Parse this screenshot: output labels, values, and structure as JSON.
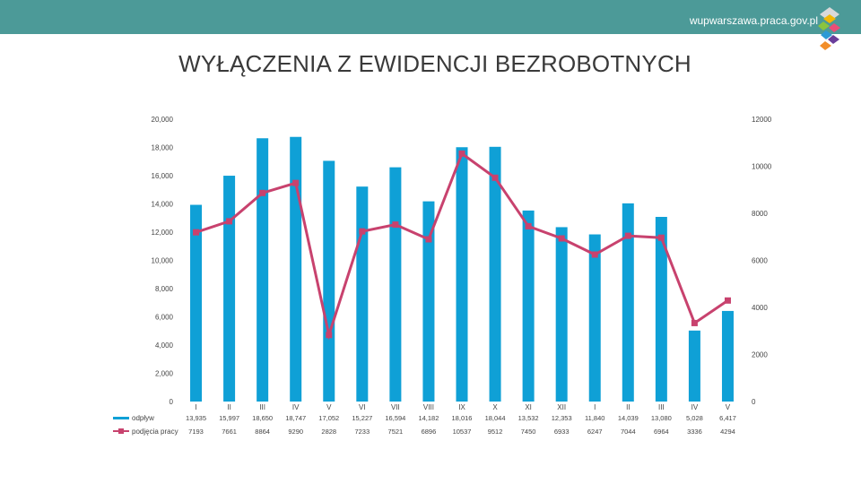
{
  "header": {
    "site": "wupwarszawa.praca.gov.pl"
  },
  "colors": {
    "topbar": "#4c9a98",
    "bars": "#0fa0d6",
    "line": "#c8426e"
  },
  "chart_data": {
    "type": "bar",
    "title": "WYŁĄCZENIA Z EWIDENCJI BEZROBOTNYCH",
    "categories": [
      "I",
      "II",
      "III",
      "IV",
      "V",
      "VI",
      "VII",
      "VIII",
      "IX",
      "X",
      "XI",
      "XII",
      "I",
      "II",
      "III",
      "IV",
      "V"
    ],
    "left_axis": {
      "ylim": [
        0,
        20000
      ],
      "ticks": [
        "0",
        "2,000",
        "4,000",
        "6,000",
        "8,000",
        "10,000",
        "12,000",
        "14,000",
        "16,000",
        "18,000",
        "20,000"
      ]
    },
    "right_axis": {
      "ylim": [
        0,
        12000
      ],
      "ticks": [
        "0",
        "2000",
        "4000",
        "6000",
        "8000",
        "10000",
        "12000"
      ]
    },
    "series": [
      {
        "name": "odpływ",
        "type": "bar",
        "axis": "left",
        "values": [
          13935,
          15997,
          18650,
          18747,
          17052,
          15227,
          16594,
          14182,
          18016,
          18044,
          13532,
          12353,
          11840,
          14039,
          13080,
          5028,
          6417
        ],
        "labels": [
          "13,935",
          "15,997",
          "18,650",
          "18,747",
          "17,052",
          "15,227",
          "16,594",
          "14,182",
          "18,016",
          "18,044",
          "13,532",
          "12,353",
          "11,840",
          "14,039",
          "13,080",
          "5,028",
          "6,417"
        ]
      },
      {
        "name": "podjęcia pracy",
        "type": "line",
        "axis": "right",
        "values": [
          7193,
          7661,
          8864,
          9290,
          2828,
          7233,
          7521,
          6896,
          10537,
          9512,
          7450,
          6933,
          6247,
          7044,
          6964,
          3336,
          4294
        ],
        "labels": [
          "7193",
          "7661",
          "8864",
          "9290",
          "2828",
          "7233",
          "7521",
          "6896",
          "10537",
          "9512",
          "7450",
          "6933",
          "6247",
          "7044",
          "6964",
          "3336",
          "4294"
        ]
      }
    ]
  }
}
